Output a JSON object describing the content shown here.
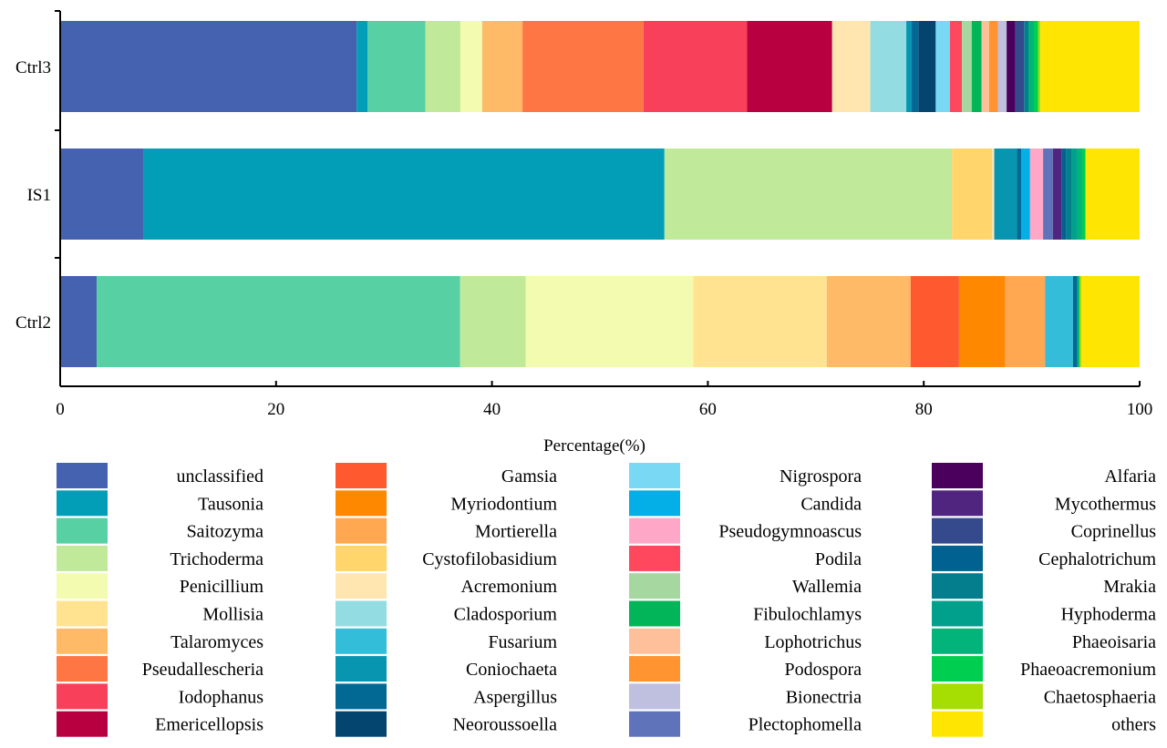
{
  "chart_data": {
    "type": "bar",
    "orientation": "horizontal",
    "stacked": true,
    "title": "",
    "xlabel": "Percentage(%)",
    "ylabel": "",
    "xlim": [
      0,
      100
    ],
    "xticks": [
      0,
      20,
      40,
      60,
      80,
      100
    ],
    "grid": false,
    "legend_position": "bottom",
    "categories": [
      "Ctrl3",
      "IS1",
      "Ctrl2"
    ],
    "series": [
      {
        "name": "unclassified",
        "color": "#4462AF",
        "values": [
          27.2,
          7.7,
          3.4
        ]
      },
      {
        "name": "Tausonia",
        "color": "#029EB8",
        "values": [
          1.0,
          48.0,
          0
        ]
      },
      {
        "name": "Saitozyma",
        "color": "#57D0A4",
        "values": [
          5.3,
          0,
          33.8
        ]
      },
      {
        "name": "Trichoderma",
        "color": "#C0E99A",
        "values": [
          3.2,
          26.5,
          6.1
        ]
      },
      {
        "name": "Penicillium",
        "color": "#F2FBAF",
        "values": [
          2.0,
          0,
          15.6
        ]
      },
      {
        "name": "Mollisia",
        "color": "#FFE391",
        "values": [
          0,
          0,
          12.4
        ]
      },
      {
        "name": "Talaromyces",
        "color": "#FEBA66",
        "values": [
          3.7,
          0,
          7.8
        ]
      },
      {
        "name": "Pseudallescheria",
        "color": "#FF7645",
        "values": [
          11.1,
          0,
          0
        ]
      },
      {
        "name": "Iodophanus",
        "color": "#F9405A",
        "values": [
          9.5,
          0,
          0
        ]
      },
      {
        "name": "Emericellopsis",
        "color": "#B80040",
        "values": [
          7.8,
          0,
          0
        ]
      },
      {
        "name": "Gamsia",
        "color": "#FF592F",
        "values": [
          0,
          0,
          4.5
        ]
      },
      {
        "name": "Myriodontium",
        "color": "#FF8801",
        "values": [
          0,
          0,
          4.3
        ]
      },
      {
        "name": "Mortierella",
        "color": "#FFA851",
        "values": [
          0,
          0,
          3.7
        ]
      },
      {
        "name": "Cystofilobasidium",
        "color": "#FFD56C",
        "values": [
          0,
          3.7,
          0
        ]
      },
      {
        "name": "Acremonium",
        "color": "#FFE6B1",
        "values": [
          3.5,
          0.2,
          0
        ]
      },
      {
        "name": "Cladosporium",
        "color": "#93DCE1",
        "values": [
          3.3,
          0,
          0
        ]
      },
      {
        "name": "Fusarium",
        "color": "#33BDD8",
        "values": [
          0,
          0,
          2.6
        ]
      },
      {
        "name": "Coniochaeta",
        "color": "#0895B0",
        "values": [
          0.5,
          2.1,
          0
        ]
      },
      {
        "name": "Aspergillus",
        "color": "#026894",
        "values": [
          0.6,
          0.4,
          0.4
        ]
      },
      {
        "name": "Neoroussoella",
        "color": "#044570",
        "values": [
          1.6,
          0,
          0
        ]
      },
      {
        "name": "Nigrospora",
        "color": "#79D8F4",
        "values": [
          1.3,
          0,
          0
        ]
      },
      {
        "name": "Candida",
        "color": "#04AEE6",
        "values": [
          0,
          0.8,
          0
        ]
      },
      {
        "name": "Pseudogymnoascus",
        "color": "#FFA7C6",
        "values": [
          0,
          1.2,
          0
        ]
      },
      {
        "name": "Podila",
        "color": "#FF475D",
        "values": [
          1.1,
          0,
          0
        ]
      },
      {
        "name": "Wallemia",
        "color": "#A7D7A0",
        "values": [
          0.9,
          0,
          0
        ]
      },
      {
        "name": "Fibulochlamys",
        "color": "#01B558",
        "values": [
          0.9,
          0,
          0
        ]
      },
      {
        "name": "Lophotrichus",
        "color": "#FEC09A",
        "values": [
          0.7,
          0,
          0
        ]
      },
      {
        "name": "Podospora",
        "color": "#FF9431",
        "values": [
          0.8,
          0,
          0
        ]
      },
      {
        "name": "Bionectria",
        "color": "#BFBFE0",
        "values": [
          0.8,
          0,
          0
        ]
      },
      {
        "name": "Plectophomella",
        "color": "#5E73BA",
        "values": [
          0,
          0.9,
          0
        ]
      },
      {
        "name": "Alfaria",
        "color": "#4A005C",
        "values": [
          0.8,
          0,
          0
        ]
      },
      {
        "name": "Mycothermus",
        "color": "#4F2580",
        "values": [
          0,
          0.8,
          0
        ]
      },
      {
        "name": "Coprinellus",
        "color": "#344A8C",
        "values": [
          0.8,
          0,
          0
        ]
      },
      {
        "name": "Cephalotrichum",
        "color": "#016190",
        "values": [
          0,
          0.4,
          0
        ]
      },
      {
        "name": "Mrakia",
        "color": "#047E8C",
        "values": [
          0.4,
          0.5,
          0
        ]
      },
      {
        "name": "Hyphoderma",
        "color": "#01A08D",
        "values": [
          0,
          0.5,
          0
        ]
      },
      {
        "name": "Phaeoisaria",
        "color": "#02B37A",
        "values": [
          0.5,
          0.5,
          0.2
        ]
      },
      {
        "name": "Phaeoacremonium",
        "color": "#00CE50",
        "values": [
          0.4,
          0.3,
          0
        ]
      },
      {
        "name": "Chaetosphaeria",
        "color": "#A6DD02",
        "values": [
          0.2,
          0,
          0.2
        ]
      },
      {
        "name": "others",
        "color": "#FFE602",
        "values": [
          9.1,
          5.0,
          5.4
        ]
      }
    ]
  }
}
